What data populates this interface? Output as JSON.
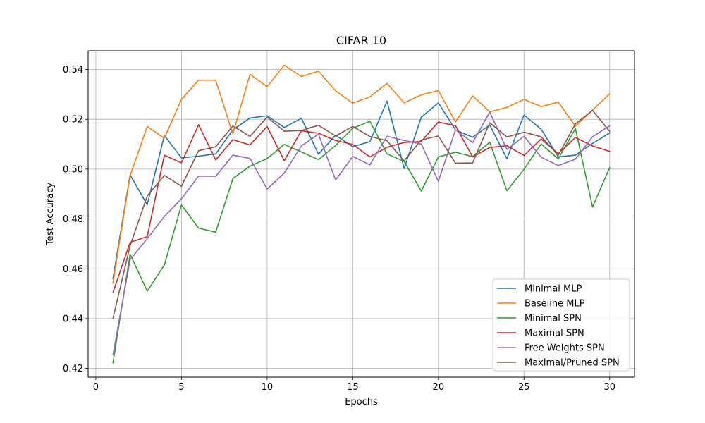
{
  "chart_data": {
    "type": "line",
    "title": "CIFAR 10",
    "xlabel": "Epochs",
    "ylabel": "Test Accuracy",
    "xlim": [
      -0.45,
      31.45
    ],
    "ylim": [
      0.4165,
      0.5475
    ],
    "xticks": [
      0,
      5,
      10,
      15,
      20,
      25,
      30
    ],
    "yticks": [
      0.42,
      0.44,
      0.46,
      0.48,
      0.5,
      0.52,
      0.54
    ],
    "xtick_labels": [
      "0",
      "5",
      "10",
      "15",
      "20",
      "25",
      "30"
    ],
    "ytick_labels": [
      "0.42",
      "0.44",
      "0.46",
      "0.48",
      "0.50",
      "0.52",
      "0.54"
    ],
    "grid": true,
    "legend_position": "lower-right",
    "x": [
      1,
      2,
      3,
      4,
      5,
      6,
      7,
      8,
      9,
      10,
      11,
      12,
      13,
      14,
      15,
      16,
      17,
      18,
      19,
      20,
      21,
      22,
      23,
      24,
      25,
      26,
      27,
      28,
      29,
      30
    ],
    "series": [
      {
        "name": "Minimal MLP",
        "color": "#1f77b4",
        "values": [
          0.456,
          0.4977,
          0.4857,
          0.5135,
          0.5045,
          0.5052,
          0.5061,
          0.5158,
          0.5205,
          0.5214,
          0.5167,
          0.5204,
          0.506,
          0.5136,
          0.509,
          0.511,
          0.5273,
          0.5003,
          0.5208,
          0.5266,
          0.5157,
          0.5128,
          0.5177,
          0.5042,
          0.5217,
          0.516,
          0.5049,
          0.5056,
          0.5103,
          0.5145
        ]
      },
      {
        "name": "Baseline MLP",
        "color": "#ff7f0e",
        "values": [
          0.4543,
          0.4973,
          0.5171,
          0.5124,
          0.528,
          0.5357,
          0.5357,
          0.514,
          0.5381,
          0.5331,
          0.5417,
          0.5372,
          0.5393,
          0.5314,
          0.5265,
          0.529,
          0.5344,
          0.5266,
          0.5298,
          0.5315,
          0.5189,
          0.5294,
          0.523,
          0.5248,
          0.528,
          0.5251,
          0.5269,
          0.5172,
          0.5237,
          0.5302
        ]
      },
      {
        "name": "Minimal SPN",
        "color": "#2ca02c",
        "values": [
          0.4222,
          0.4659,
          0.451,
          0.4615,
          0.4856,
          0.4763,
          0.4747,
          0.4962,
          0.5012,
          0.5042,
          0.5099,
          0.5069,
          0.5038,
          0.5095,
          0.5164,
          0.5192,
          0.5061,
          0.5031,
          0.4912,
          0.5049,
          0.5068,
          0.505,
          0.5108,
          0.4913,
          0.4999,
          0.5101,
          0.5041,
          0.5163,
          0.4848,
          0.5006
        ]
      },
      {
        "name": "Maximal SPN",
        "color": "#d62728",
        "values": [
          0.4505,
          0.4706,
          0.4729,
          0.5056,
          0.5025,
          0.5178,
          0.5037,
          0.5118,
          0.5097,
          0.5171,
          0.5034,
          0.5154,
          0.5144,
          0.5115,
          0.5099,
          0.5049,
          0.5088,
          0.5107,
          0.5111,
          0.5189,
          0.5174,
          0.5049,
          0.5087,
          0.5094,
          0.5055,
          0.5121,
          0.5062,
          0.5127,
          0.5093,
          0.5071
        ]
      },
      {
        "name": "Free Weights SPN",
        "color": "#9467bd",
        "values": [
          0.4254,
          0.4636,
          0.4721,
          0.481,
          0.4881,
          0.4972,
          0.4971,
          0.5056,
          0.5043,
          0.492,
          0.4984,
          0.5093,
          0.514,
          0.4956,
          0.5051,
          0.5017,
          0.5132,
          0.5115,
          0.5101,
          0.4951,
          0.5158,
          0.5106,
          0.5229,
          0.5079,
          0.5132,
          0.5048,
          0.5014,
          0.504,
          0.513,
          0.5174
        ]
      },
      {
        "name": "Maximal/Pruned SPN",
        "color": "#8c564b",
        "values": [
          0.4401,
          0.4692,
          0.4892,
          0.4975,
          0.4931,
          0.5074,
          0.509,
          0.5173,
          0.5131,
          0.5209,
          0.5152,
          0.5155,
          0.5176,
          0.5133,
          0.5171,
          0.5131,
          0.5114,
          0.5033,
          0.5117,
          0.5133,
          0.5024,
          0.5025,
          0.5186,
          0.5129,
          0.5148,
          0.513,
          0.5056,
          0.5181,
          0.5236,
          0.5151
        ]
      }
    ]
  }
}
